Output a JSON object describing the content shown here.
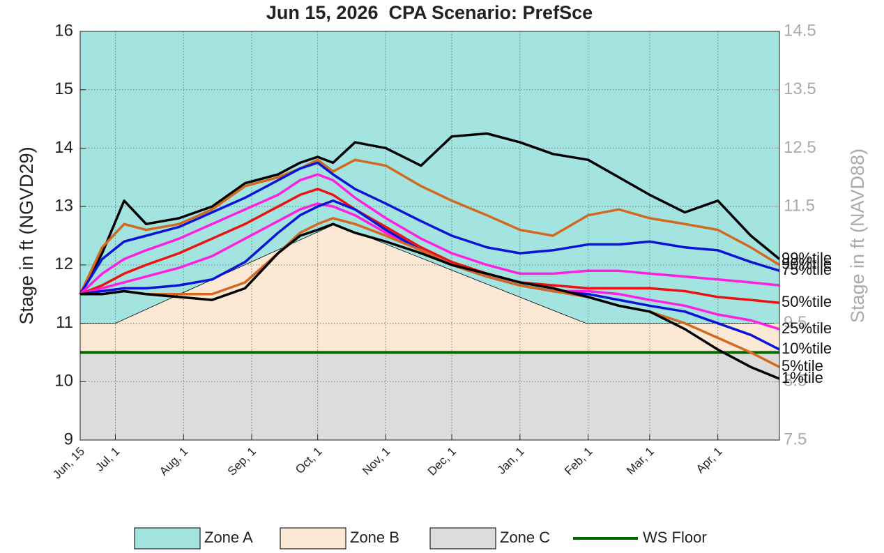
{
  "chart_data": {
    "type": "line",
    "title": "Jun 15, 2026  CPA Scenario: PrefSce",
    "ylabel": "Stage in ft (NGVD29)",
    "y2label": "Stage in ft (NAVD88)",
    "xlim": [
      0,
      318
    ],
    "xticks": [
      {
        "value": 0,
        "label": "Jun, 15"
      },
      {
        "value": 16,
        "label": "Jul, 1"
      },
      {
        "value": 47,
        "label": "Aug, 1"
      },
      {
        "value": 78,
        "label": "Sep, 1"
      },
      {
        "value": 108,
        "label": "Oct, 1"
      },
      {
        "value": 139,
        "label": "Nov, 1"
      },
      {
        "value": 169,
        "label": "Dec, 1"
      },
      {
        "value": 200,
        "label": "Jan, 1"
      },
      {
        "value": 231,
        "label": "Feb, 1"
      },
      {
        "value": 259,
        "label": "Mar, 1"
      },
      {
        "value": 290,
        "label": "Apr, 1"
      }
    ],
    "ylim": [
      9,
      16
    ],
    "yticks": [
      9,
      10,
      11,
      12,
      13,
      14,
      15,
      16
    ],
    "y2lim": [
      7.5,
      14.5
    ],
    "y2ticks": [
      7.5,
      8.5,
      9.5,
      10.5,
      11.5,
      12.5,
      13.5,
      14.5
    ],
    "grid": true,
    "zones": [
      {
        "name": "Zone A",
        "color": "#a3e4e1"
      },
      {
        "name": "Zone B",
        "color": "#fbe9d6"
      },
      {
        "name": "Zone C",
        "color": "#dcdcdc"
      }
    ],
    "zone_b_top": {
      "x": [
        0,
        16,
        116,
        230,
        318
      ],
      "values": [
        11,
        11,
        12.7,
        11,
        11
      ]
    },
    "ws_floor": {
      "name": "WS Floor",
      "color": "#006400",
      "value": 10.5
    },
    "x": [
      0,
      10,
      20,
      30,
      45,
      60,
      75,
      90,
      100,
      108,
      115,
      125,
      139,
      155,
      169,
      185,
      200,
      215,
      231,
      245,
      259,
      275,
      290,
      305,
      318
    ],
    "series": [
      {
        "name": "99%tile",
        "color": "#000000",
        "values": [
          11.5,
          12.2,
          13.1,
          12.7,
          12.8,
          13.0,
          13.4,
          13.55,
          13.75,
          13.85,
          13.75,
          14.1,
          14.0,
          13.7,
          14.2,
          14.25,
          14.1,
          13.9,
          13.8,
          13.5,
          13.2,
          12.9,
          13.1,
          12.5,
          12.1
        ]
      },
      {
        "name": "90%tile",
        "color": "#d2691e",
        "values": [
          11.5,
          12.3,
          12.7,
          12.6,
          12.7,
          12.95,
          13.35,
          13.5,
          13.65,
          13.8,
          13.6,
          13.8,
          13.7,
          13.35,
          13.1,
          12.85,
          12.6,
          12.5,
          12.85,
          12.95,
          12.8,
          12.7,
          12.6,
          12.3,
          12.0
        ]
      },
      {
        "name": "75%tile",
        "color": "#0a14d8",
        "values": [
          11.5,
          12.1,
          12.4,
          12.5,
          12.65,
          12.9,
          13.15,
          13.45,
          13.65,
          13.75,
          13.55,
          13.3,
          13.05,
          12.75,
          12.5,
          12.3,
          12.2,
          12.25,
          12.35,
          12.35,
          12.4,
          12.3,
          12.25,
          12.05,
          11.9
        ]
      },
      {
        "color": "#ff1fe0",
        "values": [
          11.5,
          11.85,
          12.1,
          12.25,
          12.45,
          12.7,
          12.95,
          13.2,
          13.45,
          13.55,
          13.45,
          13.15,
          12.8,
          12.45,
          12.2,
          12.0,
          11.85,
          11.85,
          11.9,
          11.9,
          11.85,
          11.8,
          11.75,
          11.7,
          11.65
        ]
      },
      {
        "name": "50%tile",
        "color": "#ee1111",
        "values": [
          11.5,
          11.65,
          11.85,
          12.0,
          12.2,
          12.45,
          12.7,
          13.0,
          13.2,
          13.3,
          13.2,
          12.95,
          12.65,
          12.3,
          12.05,
          11.85,
          11.7,
          11.65,
          11.6,
          11.6,
          11.6,
          11.55,
          11.45,
          11.4,
          11.35
        ]
      },
      {
        "name": "25%tile",
        "color": "#ff1fe0",
        "values": [
          11.5,
          11.6,
          11.7,
          11.8,
          11.95,
          12.15,
          12.45,
          12.75,
          12.95,
          13.05,
          13.0,
          12.85,
          12.55,
          12.25,
          12.0,
          11.8,
          11.65,
          11.55,
          11.55,
          11.5,
          11.4,
          11.3,
          11.15,
          11.05,
          10.9
        ]
      },
      {
        "name": "10%tile",
        "color": "#0a14d8",
        "values": [
          11.5,
          11.55,
          11.6,
          11.6,
          11.65,
          11.75,
          12.05,
          12.55,
          12.85,
          13.0,
          13.1,
          12.95,
          12.6,
          12.25,
          12.0,
          11.8,
          11.65,
          11.55,
          11.5,
          11.4,
          11.3,
          11.2,
          11.0,
          10.8,
          10.55
        ]
      },
      {
        "name": "5%tile",
        "color": "#d2691e",
        "values": [
          11.5,
          11.5,
          11.55,
          11.5,
          11.5,
          11.5,
          11.7,
          12.2,
          12.55,
          12.7,
          12.8,
          12.7,
          12.5,
          12.25,
          12.0,
          11.8,
          11.65,
          11.55,
          11.45,
          11.3,
          11.2,
          11.0,
          10.75,
          10.5,
          10.25
        ]
      },
      {
        "name": "1%tile",
        "color": "#000000",
        "values": [
          11.5,
          11.5,
          11.55,
          11.5,
          11.45,
          11.4,
          11.6,
          12.2,
          12.5,
          12.6,
          12.7,
          12.55,
          12.4,
          12.2,
          12.0,
          11.85,
          11.7,
          11.6,
          11.45,
          11.3,
          11.2,
          10.9,
          10.55,
          10.25,
          10.05
        ]
      }
    ]
  }
}
